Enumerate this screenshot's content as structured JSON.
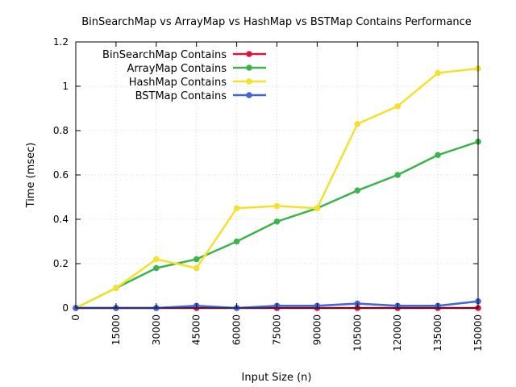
{
  "chart_data": {
    "type": "line",
    "title": "BinSearchMap vs ArrayMap vs HashMap vs BSTMap Contains Performance",
    "xlabel": "Input Size (n)",
    "ylabel": "Time (msec)",
    "xlim": [
      0,
      150000
    ],
    "ylim": [
      0,
      1.2
    ],
    "x_ticks": [
      "0",
      "15000",
      "30000",
      "45000",
      "60000",
      "75000",
      "90000",
      "105000",
      "120000",
      "135000",
      "150000"
    ],
    "y_ticks": [
      "0",
      "0.2",
      "0.4",
      "0.6",
      "0.8",
      "1",
      "1.2"
    ],
    "grid": true,
    "legend_position": "top-left",
    "x": [
      0,
      15000,
      30000,
      45000,
      60000,
      75000,
      90000,
      105000,
      120000,
      135000,
      150000
    ],
    "series": [
      {
        "name": "BinSearchMap Contains",
        "color": "#dc143c",
        "values": [
          0,
          0,
          0,
          0,
          0,
          0,
          0,
          0,
          0,
          0,
          0
        ]
      },
      {
        "name": "ArrayMap Contains",
        "color": "#3cb44b",
        "values": [
          0,
          0.09,
          0.18,
          0.22,
          0.3,
          0.39,
          0.45,
          0.53,
          0.6,
          0.69,
          0.75
        ]
      },
      {
        "name": "HashMap Contains",
        "color": "#f5e12b",
        "values": [
          0,
          0.09,
          0.22,
          0.18,
          0.45,
          0.46,
          0.45,
          0.83,
          0.91,
          1.06,
          1.08
        ]
      },
      {
        "name": "BSTMap Contains",
        "color": "#4363d8",
        "values": [
          0,
          0,
          0,
          0.01,
          0,
          0.01,
          0.01,
          0.02,
          0.01,
          0.01,
          0.03
        ]
      }
    ]
  }
}
